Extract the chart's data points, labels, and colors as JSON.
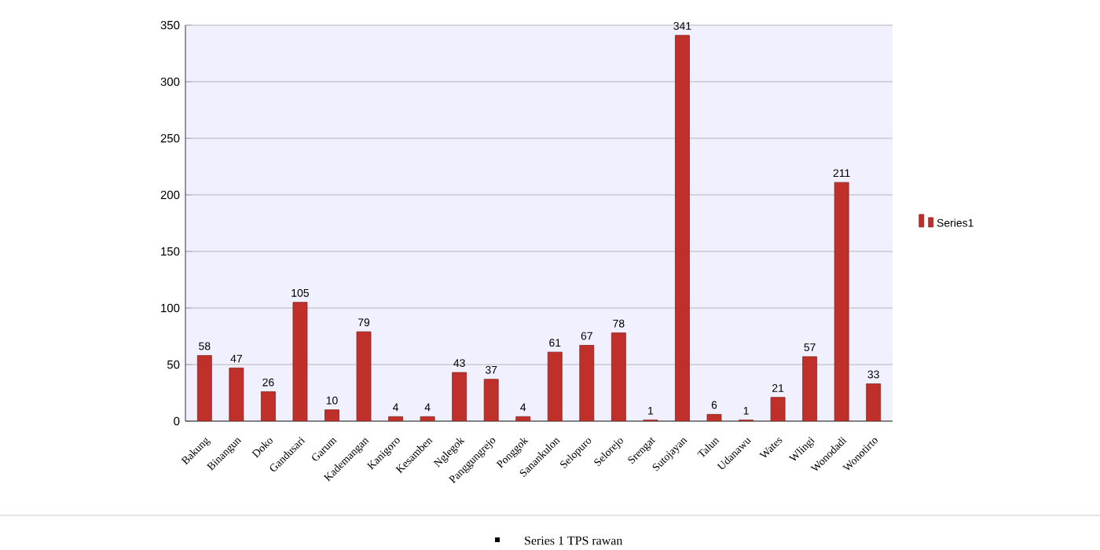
{
  "chart_data": {
    "type": "bar",
    "categories": [
      "Bakung",
      "Binangun",
      "Doko",
      "Gandusari",
      "Garum",
      "Kademangan",
      "Kanigoro",
      "Kesamben",
      "Nglegok",
      "Panggungrejo",
      "Ponggok",
      "Sanankulon",
      "Selopuro",
      "Selorejo",
      "Srengat",
      "Sutojayan",
      "Talun",
      "Udanawu",
      "Wates",
      "Wlingi",
      "Wonodadi",
      "Wonotirto"
    ],
    "series": [
      {
        "name": "Series1",
        "color": "#c0302a",
        "values": [
          58,
          47,
          26,
          105,
          10,
          79,
          4,
          4,
          43,
          37,
          4,
          61,
          67,
          78,
          1,
          341,
          6,
          1,
          21,
          57,
          211,
          33
        ]
      }
    ],
    "ylim": [
      0,
      350
    ],
    "yticks": [
      0,
      50,
      100,
      150,
      200,
      250,
      300,
      350
    ],
    "grid": "y",
    "legend": "right",
    "data_labels": true,
    "annotations": [
      "Series 1 TPS rawan"
    ]
  }
}
